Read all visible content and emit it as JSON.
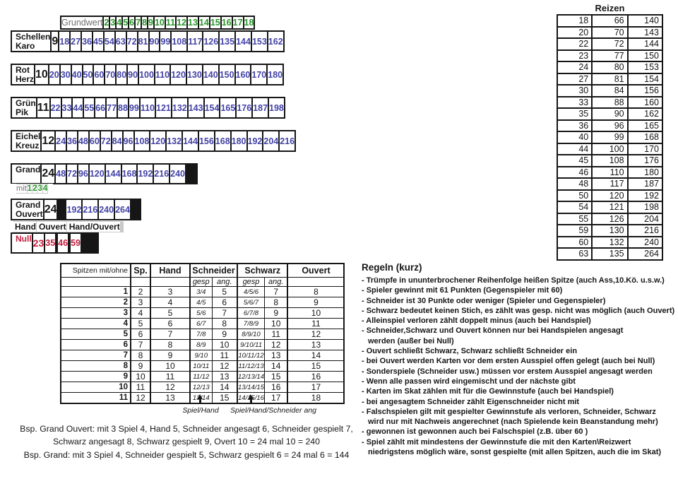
{
  "sheet": {
    "colors": {
      "green": "#2a962a",
      "blue": "#4343a8",
      "red": "#c41f3e",
      "gray": "#6e6e6e"
    },
    "main": {
      "grundwert_label": "Grundwert",
      "multipliers": [
        "2",
        "3",
        "4",
        "5",
        "6",
        "7",
        "8",
        "9",
        "10",
        "11",
        "12",
        "13",
        "14",
        "15",
        "16",
        "17",
        "18"
      ],
      "rows": [
        {
          "label": "Schellen\nKaro",
          "base": "9",
          "values": [
            "18",
            "27",
            "36",
            "45",
            "54",
            "63",
            "72",
            "81",
            "90",
            "99",
            "108",
            "117",
            "126",
            "135",
            "144",
            "153",
            "162"
          ]
        },
        {
          "label": "Rot\nHerz",
          "base": "10",
          "values": [
            "20",
            "30",
            "40",
            "50",
            "60",
            "70",
            "80",
            "90",
            "100",
            "110",
            "120",
            "130",
            "140",
            "150",
            "160",
            "170",
            "180"
          ]
        },
        {
          "label": "Grün\nPik",
          "base": "11",
          "values": [
            "22",
            "33",
            "44",
            "55",
            "66",
            "77",
            "88",
            "99",
            "110",
            "121",
            "132",
            "143",
            "154",
            "165",
            "176",
            "187",
            "198"
          ]
        },
        {
          "label": "Eichel\nKreuz",
          "base": "12",
          "values": [
            "24",
            "36",
            "48",
            "60",
            "72",
            "84",
            "96",
            "108",
            "120",
            "132",
            "144",
            "156",
            "168",
            "180",
            "192",
            "204",
            "216"
          ]
        },
        {
          "label": "Grand",
          "base": "24",
          "values": [
            "48",
            "72",
            "96",
            "120",
            "144",
            "168",
            "192",
            "216",
            "240",
            "",
            "",
            "",
            "",
            "",
            "",
            "",
            ""
          ]
        },
        {
          "label": "Grand\nOuvert",
          "base": "24",
          "values": [
            "",
            "",
            "",
            "",
            "",
            "",
            "192",
            "216",
            "240",
            "264",
            "",
            "",
            "",
            "",
            "",
            "",
            ""
          ]
        }
      ],
      "mit_label": "mit",
      "mit_values": [
        "1",
        "2",
        "3",
        "4"
      ],
      "null_header_labels": [
        "Hand",
        "Ouvert",
        "Hand/Ouvert"
      ],
      "null_row": {
        "label": "Null",
        "base": "23",
        "values": [
          "35",
          "",
          "46",
          "",
          "59",
          "",
          "",
          "",
          "",
          "",
          "",
          "",
          "",
          "",
          "",
          "",
          ""
        ]
      }
    },
    "reizen": {
      "title": "Reizen",
      "rows": [
        [
          "18",
          "66",
          "140"
        ],
        [
          "20",
          "70",
          "143"
        ],
        [
          "22",
          "72",
          "144"
        ],
        [
          "23",
          "77",
          "150"
        ],
        [
          "24",
          "80",
          "153"
        ],
        [
          "27",
          "81",
          "154"
        ],
        [
          "30",
          "84",
          "156"
        ],
        [
          "33",
          "88",
          "160"
        ],
        [
          "35",
          "90",
          "162"
        ],
        [
          "36",
          "96",
          "165"
        ],
        [
          "40",
          "99",
          "168"
        ],
        [
          "44",
          "100",
          "170"
        ],
        [
          "45",
          "108",
          "176"
        ],
        [
          "46",
          "110",
          "180"
        ],
        [
          "48",
          "117",
          "187"
        ],
        [
          "50",
          "120",
          "192"
        ],
        [
          "54",
          "121",
          "198"
        ],
        [
          "55",
          "126",
          "204"
        ],
        [
          "59",
          "130",
          "216"
        ],
        [
          "60",
          "132",
          "240"
        ],
        [
          "63",
          "135",
          "264"
        ]
      ]
    },
    "spitzen": {
      "col_header": "Spitzen mit/ohne",
      "headers": [
        "Sp.",
        "Hand",
        "Schneider",
        "Schwarz",
        "Ouvert"
      ],
      "sub_headers": [
        "gesp",
        "ang.",
        "gesp",
        "ang."
      ],
      "rows": [
        [
          "1",
          "2",
          "3",
          "3/4",
          "5",
          "4/5/6",
          "7",
          "8"
        ],
        [
          "2",
          "3",
          "4",
          "4/5",
          "6",
          "5/6/7",
          "8",
          "9"
        ],
        [
          "3",
          "4",
          "5",
          "5/6",
          "7",
          "6/7/8",
          "9",
          "10"
        ],
        [
          "4",
          "5",
          "6",
          "6/7",
          "8",
          "7/8/9",
          "10",
          "11"
        ],
        [
          "5",
          "6",
          "7",
          "7/8",
          "9",
          "8/9/10",
          "11",
          "12"
        ],
        [
          "6",
          "7",
          "8",
          "8/9",
          "10",
          "9/10/11",
          "12",
          "13"
        ],
        [
          "7",
          "8",
          "9",
          "9/10",
          "11",
          "10/11/12",
          "13",
          "14"
        ],
        [
          "8",
          "9",
          "10",
          "10/11",
          "12",
          "11/12/13",
          "14",
          "15"
        ],
        [
          "9",
          "10",
          "11",
          "11/12",
          "13",
          "12/13/14",
          "15",
          "16"
        ],
        [
          "10",
          "11",
          "12",
          "12/13",
          "14",
          "13/14/15",
          "16",
          "17"
        ],
        [
          "11",
          "12",
          "13",
          "13/14",
          "15",
          "14/15/16",
          "17",
          "18"
        ]
      ],
      "annotations": [
        "Spiel/Hand",
        "Spiel/Hand/Schneider ang"
      ]
    },
    "rules": {
      "title": "Regeln (kurz)",
      "lines": [
        {
          "text": "- Trümpfe in ununterbrochener Reihenfolge heißen Spitze (auch Ass,10.Kö. u.s.w.)",
          "indent": false
        },
        {
          "text": "- Spieler gewinnt mit 61 Punkten (Gegenspieler mit 60)",
          "indent": false
        },
        {
          "text": "- Schneider ist 30 Punkte oder weniger (Spieler und Gegenspieler)",
          "indent": false
        },
        {
          "text": "- Schwarz bedeutet keinen Stich, es zählt was gesp. nicht was möglich (auch Ouvert)",
          "indent": false
        },
        {
          "text": "- Alleinspiel verloren zählt doppelt minus (auch bei Handspiel)",
          "indent": false
        },
        {
          "text": "- Schneider,Schwarz und Ouvert können nur bei  Handspielen angesagt",
          "indent": false
        },
        {
          "text": "werden (außer bei Null)",
          "indent": true
        },
        {
          "text": "- Ouvert schließt Schwarz, Schwarz schließt Schneider ein",
          "indent": false
        },
        {
          "text": "- bei Ouvert werden Karten vor dem ersten Ausspiel offen gelegt (auch bei Null)",
          "indent": false
        },
        {
          "text": "- Sonderspiele (Schneider usw.) müssen vor erstem Ausspiel angesagt werden",
          "indent": false
        },
        {
          "text": "- Wenn alle passen wird eingemischt und der nächste gibt",
          "indent": false
        },
        {
          "text": "- Karten im Skat zählen mit für die Gewinnstufe (auch bei Handspiel)",
          "indent": false
        },
        {
          "text": "- bei angesagtem Schneider zählt Eigenschneider nicht mit",
          "indent": false
        },
        {
          "text": "- Falschspielen gilt mit gespielter Gewinnstufe als verloren, Schneider, Schwarz",
          "indent": false
        },
        {
          "text": "wird nur mit Nachweis angerechnet (nach Spielende kein Beanstandung mehr)",
          "indent": true
        },
        {
          "text": "- gewonnen ist gewonnen auch bei Falschspiel (z.B. über 60 )",
          "indent": false
        },
        {
          "text": "- Spiel zählt mit mindestens der Gewinnstufe die mit den Karten\\Reizwert",
          "indent": false
        },
        {
          "text": "niedrigstens möglich wäre, sonst gespielte (mit allen Spitzen, auch die im Skat)",
          "indent": true
        }
      ]
    },
    "examples": {
      "lines": [
        "Bsp. Grand Ouvert: mit 3 Spiel 4, Hand 5, Schneider angesagt 6, Schneider gespielt 7,",
        "Schwarz angesagt 8, Schwarz gespielt 9, Overt 10 = 24 mal 10 = 240",
        "Bsp. Grand: mit 3 Spiel 4, Schneider gespielt 5, Schwarz gespielt 6 = 24 mal 6 = 144"
      ]
    }
  }
}
